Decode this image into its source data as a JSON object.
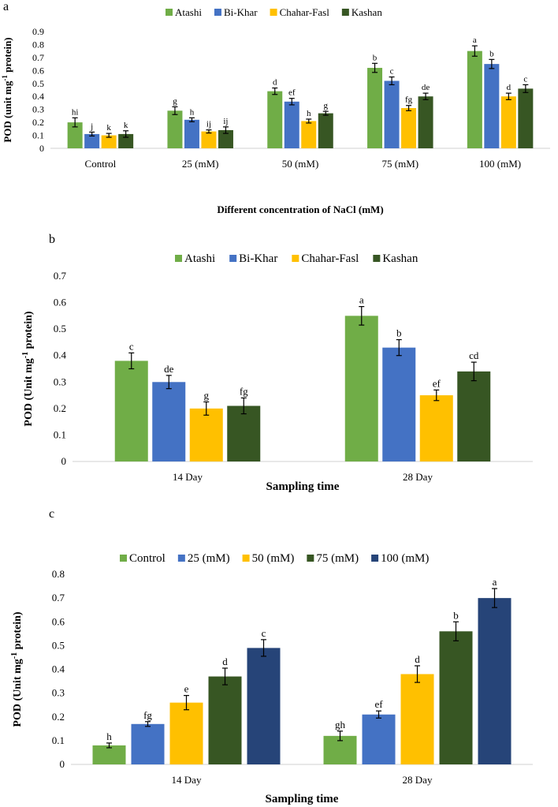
{
  "chart_data": [
    {
      "panel_label": "a",
      "type": "bar",
      "title": "",
      "xlabel": "Different concentration of NaCl (mM)",
      "ylabel": "POD (unit mg",
      "ylabel_sup": "-1",
      "ylabel_tail": " protein)",
      "ylim": [
        0,
        0.9
      ],
      "yticks": [
        "0",
        "0.1",
        "0.2",
        "0.3",
        "0.4",
        "0.5",
        "0.6",
        "0.7",
        "0.8",
        "0.9"
      ],
      "categories": [
        "Control",
        "25 (mM)",
        "50 (mM)",
        "75 (mM)",
        "100 (mM)"
      ],
      "series": [
        {
          "name": "Atashi",
          "color": "#70AD47",
          "values": [
            0.2,
            0.29,
            0.44,
            0.62,
            0.75
          ],
          "errors": [
            0.035,
            0.03,
            0.025,
            0.035,
            0.04
          ],
          "letters": [
            "hi",
            "g",
            "d",
            "b",
            "a"
          ]
        },
        {
          "name": "Bi-Khar",
          "color": "#4472C4",
          "values": [
            0.11,
            0.22,
            0.36,
            0.52,
            0.65
          ],
          "errors": [
            0.015,
            0.015,
            0.025,
            0.03,
            0.035
          ],
          "letters": [
            "j",
            "h",
            "ef",
            "c",
            "b"
          ]
        },
        {
          "name": "Chahar-Fasl",
          "color": "#FFC000",
          "values": [
            0.1,
            0.13,
            0.21,
            0.31,
            0.4
          ],
          "errors": [
            0.015,
            0.012,
            0.015,
            0.02,
            0.025
          ],
          "letters": [
            "k",
            "ij",
            "h",
            "fg",
            "d"
          ]
        },
        {
          "name": "Kashan",
          "color": "#375623",
          "values": [
            0.11,
            0.14,
            0.27,
            0.4,
            0.46
          ],
          "errors": [
            0.025,
            0.025,
            0.015,
            0.025,
            0.03
          ],
          "letters": [
            "k",
            "ij",
            "g",
            "de",
            "c"
          ]
        }
      ]
    },
    {
      "panel_label": "b",
      "type": "bar",
      "title": "",
      "xlabel": "Sampling time",
      "ylabel": "POD (Unit mg",
      "ylabel_sup": "-1",
      "ylabel_tail": " protein)",
      "ylim": [
        0,
        0.7
      ],
      "yticks": [
        "0",
        "0.1",
        "0.2",
        "0.3",
        "0.4",
        "0.5",
        "0.6",
        "0.7"
      ],
      "categories": [
        "14 Day",
        "28 Day"
      ],
      "series": [
        {
          "name": "Atashi",
          "color": "#70AD47",
          "values": [
            0.38,
            0.55
          ],
          "errors": [
            0.03,
            0.035
          ],
          "letters": [
            "c",
            "a"
          ]
        },
        {
          "name": "Bi-Khar",
          "color": "#4472C4",
          "values": [
            0.3,
            0.43
          ],
          "errors": [
            0.025,
            0.03
          ],
          "letters": [
            "de",
            "b"
          ]
        },
        {
          "name": "Chahar-Fasl",
          "color": "#FFC000",
          "values": [
            0.2,
            0.25
          ],
          "errors": [
            0.025,
            0.02
          ],
          "letters": [
            "g",
            "ef"
          ]
        },
        {
          "name": "Kashan",
          "color": "#375623",
          "values": [
            0.21,
            0.34
          ],
          "errors": [
            0.03,
            0.035
          ],
          "letters": [
            "fg",
            "cd"
          ]
        }
      ]
    },
    {
      "panel_label": "c",
      "type": "bar",
      "title": "",
      "xlabel": "Sampling time",
      "ylabel": "POD (Unit mg",
      "ylabel_sup": "-1",
      "ylabel_tail": " protein)",
      "ylim": [
        0,
        0.8
      ],
      "yticks": [
        "0",
        "0.1",
        "0.2",
        "0.3",
        "0.4",
        "0.5",
        "0.6",
        "0.7",
        "0.8"
      ],
      "categories": [
        "14 Day",
        "28 Day"
      ],
      "series": [
        {
          "name": "Control",
          "color": "#70AD47",
          "values": [
            0.08,
            0.12
          ],
          "errors": [
            0.01,
            0.02
          ],
          "letters": [
            "h",
            "gh"
          ]
        },
        {
          "name": "25 (mM)",
          "color": "#4472C4",
          "values": [
            0.17,
            0.21
          ],
          "errors": [
            0.01,
            0.015
          ],
          "letters": [
            "fg",
            "ef"
          ]
        },
        {
          "name": "50 (mM)",
          "color": "#FFC000",
          "values": [
            0.26,
            0.38
          ],
          "errors": [
            0.03,
            0.035
          ],
          "letters": [
            "e",
            "d"
          ]
        },
        {
          "name": "75 (mM)",
          "color": "#375623",
          "values": [
            0.37,
            0.56
          ],
          "errors": [
            0.035,
            0.04
          ],
          "letters": [
            "d",
            "b"
          ]
        },
        {
          "name": "100 (mM)",
          "color": "#264478",
          "values": [
            0.49,
            0.7
          ],
          "errors": [
            0.035,
            0.04
          ],
          "letters": [
            "c",
            "a"
          ]
        }
      ]
    }
  ]
}
